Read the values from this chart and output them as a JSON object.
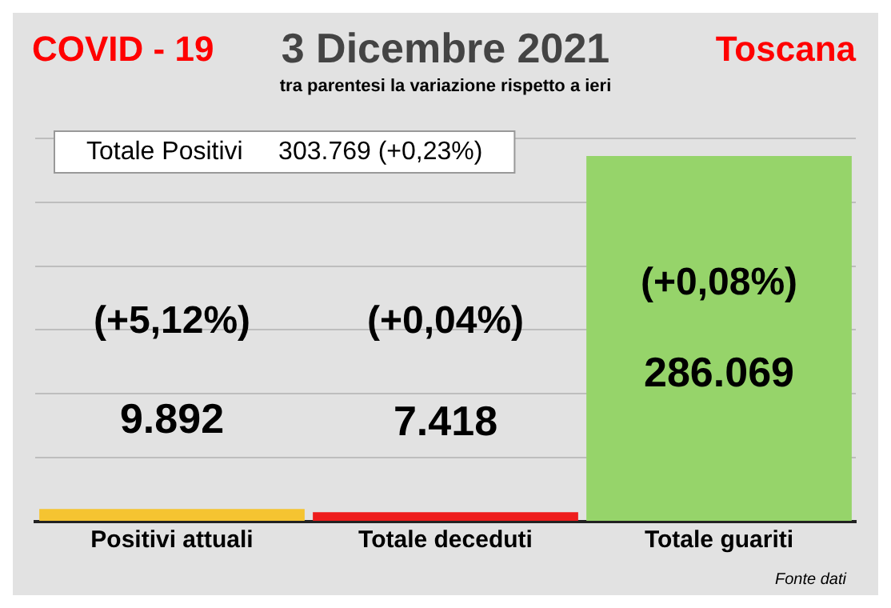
{
  "chart_data": {
    "type": "bar",
    "title": "3 Dicembre 2021",
    "subtitle": "tra parentesi la variazione rispetto a ieri",
    "categories": [
      "Positivi attuali",
      "Totale deceduti",
      "Totale guariti"
    ],
    "values": [
      9892,
      7418,
      286069
    ],
    "colors": [
      "#f5c431",
      "#ee1c1c",
      "#96d46a"
    ],
    "value_labels": [
      "9.892",
      "7.418",
      "286.069"
    ],
    "ylim": [
      0,
      300000
    ],
    "yticks": [
      {
        "value": 0,
        "label": null
      },
      {
        "value": 50000,
        "label": null
      },
      {
        "value": 100000,
        "label": null
      },
      {
        "value": 150000,
        "label": null
      },
      {
        "value": 200000,
        "label": null
      },
      {
        "value": 250000,
        "label": null
      },
      {
        "value": 300000,
        "label": null
      }
    ],
    "tick_labels": "x",
    "grid": "y",
    "legend": false,
    "annotations": [
      "COVID - 19",
      "Toscana",
      "Totale Positivi     303.769 (+0,23%)",
      "Fonte dati",
      "(+5,12%)",
      "(+0,04%)",
      "(+0,08%)"
    ]
  }
}
